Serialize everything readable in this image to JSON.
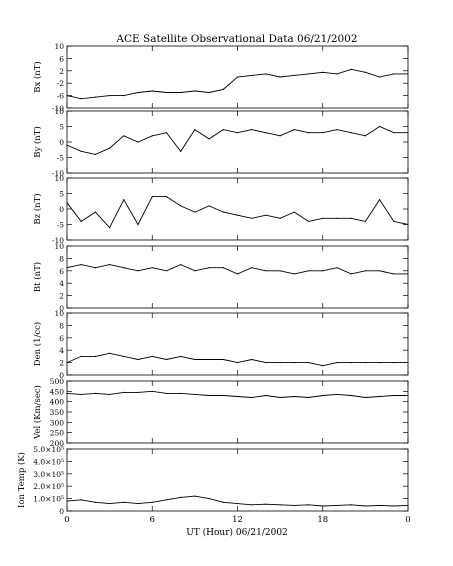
{
  "chart_data": {
    "type": "line",
    "title": "ACE Satellite Observational Data   06/21/2002",
    "xlabel": "UT (Hour)  06/21/2002",
    "x_ticks": [
      "0",
      "6",
      "12",
      "18",
      "0"
    ],
    "xlim": [
      0,
      24
    ],
    "grid": false,
    "panels": [
      {
        "name": "Bx",
        "ylabel": "Bx (nT)",
        "ylim": [
          -10,
          10
        ],
        "y_ticks": [
          "10",
          "6",
          "2",
          "-2",
          "-6",
          "-10"
        ],
        "y_tick_values": [
          10,
          6,
          2,
          -2,
          -6,
          -10
        ],
        "x": [
          0,
          1,
          2,
          3,
          4,
          5,
          6,
          7,
          8,
          9,
          10,
          11,
          12,
          13,
          14,
          15,
          16,
          17,
          18,
          19,
          20,
          21,
          22,
          23,
          24
        ],
        "values": [
          -6,
          -7,
          -6.5,
          -6,
          -6,
          -5,
          -4.5,
          -5,
          -5,
          -4.5,
          -5,
          -4,
          0,
          0.5,
          1,
          0,
          0.5,
          1,
          1.5,
          1,
          2.5,
          1.5,
          0,
          1,
          1
        ]
      },
      {
        "name": "By",
        "ylabel": "By (nT)",
        "ylim": [
          -10,
          10
        ],
        "y_ticks": [
          "10",
          "5",
          "0",
          "-5",
          "-10"
        ],
        "y_tick_values": [
          10,
          5,
          0,
          -5,
          -10
        ],
        "x": [
          0,
          1,
          2,
          3,
          4,
          5,
          6,
          7,
          8,
          9,
          10,
          11,
          12,
          13,
          14,
          15,
          16,
          17,
          18,
          19,
          20,
          21,
          22,
          23,
          24
        ],
        "values": [
          -1,
          -3,
          -4,
          -2,
          2,
          0,
          2,
          3,
          -3,
          4,
          1,
          4,
          3,
          4,
          3,
          2,
          4,
          3,
          3,
          4,
          3,
          2,
          5,
          3,
          3
        ]
      },
      {
        "name": "Bz",
        "ylabel": "Bz (nT)",
        "ylim": [
          -10,
          10
        ],
        "y_ticks": [
          "10",
          "5",
          "0",
          "-5",
          "-10"
        ],
        "y_tick_values": [
          10,
          5,
          0,
          -5,
          -10
        ],
        "x": [
          0,
          1,
          2,
          3,
          4,
          5,
          6,
          7,
          8,
          9,
          10,
          11,
          12,
          13,
          14,
          15,
          16,
          17,
          18,
          19,
          20,
          21,
          22,
          23,
          24
        ],
        "values": [
          2,
          -4,
          -1,
          -6,
          3,
          -5,
          4,
          4,
          1,
          -1,
          1,
          -1,
          -2,
          -3,
          -2,
          -3,
          -1,
          -4,
          -3,
          -3,
          -3,
          -4,
          3,
          -4,
          -5
        ]
      },
      {
        "name": "Bt",
        "ylabel": "Bt (nT)",
        "ylim": [
          0,
          10
        ],
        "y_ticks": [
          "10",
          "8",
          "6",
          "4",
          "2",
          "0"
        ],
        "y_tick_values": [
          10,
          8,
          6,
          4,
          2,
          0
        ],
        "x": [
          0,
          1,
          2,
          3,
          4,
          5,
          6,
          7,
          8,
          9,
          10,
          11,
          12,
          13,
          14,
          15,
          16,
          17,
          18,
          19,
          20,
          21,
          22,
          23,
          24
        ],
        "values": [
          6.5,
          7,
          6.5,
          7,
          6.5,
          6,
          6.5,
          6,
          7,
          6,
          6.5,
          6.5,
          5.5,
          6.5,
          6,
          6,
          5.5,
          6,
          6,
          6.5,
          5.5,
          6,
          6,
          5.5,
          5.5
        ]
      },
      {
        "name": "Den",
        "ylabel": "Den (1/cc)",
        "ylim": [
          0,
          10
        ],
        "y_ticks": [
          "10",
          "8",
          "6",
          "4",
          "2",
          "0"
        ],
        "y_tick_values": [
          10,
          8,
          6,
          4,
          2,
          0
        ],
        "x": [
          0,
          1,
          2,
          3,
          4,
          5,
          6,
          7,
          8,
          9,
          10,
          11,
          12,
          13,
          14,
          15,
          16,
          17,
          18,
          19,
          20,
          21,
          22,
          23,
          24
        ],
        "values": [
          2,
          3,
          3,
          3.5,
          3,
          2.5,
          3,
          2.5,
          3,
          2.5,
          2.5,
          2.5,
          2,
          2.5,
          2,
          2,
          2,
          2,
          1.5,
          2,
          2,
          2,
          2,
          2,
          2
        ]
      },
      {
        "name": "Vel",
        "ylabel": "Vel (Km/sec)",
        "ylim": [
          200,
          500
        ],
        "y_ticks": [
          "500",
          "450",
          "400",
          "350",
          "300",
          "250",
          "200"
        ],
        "y_tick_values": [
          500,
          450,
          400,
          350,
          300,
          250,
          200
        ],
        "x": [
          0,
          1,
          2,
          3,
          4,
          5,
          6,
          7,
          8,
          9,
          10,
          11,
          12,
          13,
          14,
          15,
          16,
          17,
          18,
          19,
          20,
          21,
          22,
          23,
          24
        ],
        "values": [
          440,
          435,
          440,
          435,
          445,
          445,
          450,
          440,
          440,
          435,
          430,
          430,
          425,
          420,
          430,
          420,
          425,
          420,
          430,
          435,
          430,
          420,
          425,
          430,
          430
        ]
      },
      {
        "name": "Ion Temp",
        "ylabel": "Ion Temp (K)",
        "ylim": [
          0,
          500000
        ],
        "y_ticks": [
          "5.0×10⁵",
          "4.0×10⁵",
          "3.0×10⁵",
          "2.0×10⁵",
          "1.0×10⁵",
          "0"
        ],
        "y_tick_values": [
          500000,
          400000,
          300000,
          200000,
          100000,
          0
        ],
        "x": [
          0,
          1,
          2,
          3,
          4,
          5,
          6,
          7,
          8,
          9,
          10,
          11,
          12,
          13,
          14,
          15,
          16,
          17,
          18,
          19,
          20,
          21,
          22,
          23,
          24
        ],
        "values": [
          80000,
          90000,
          70000,
          60000,
          70000,
          60000,
          70000,
          90000,
          110000,
          120000,
          100000,
          70000,
          60000,
          50000,
          55000,
          50000,
          45000,
          50000,
          40000,
          45000,
          50000,
          40000,
          45000,
          40000,
          45000
        ]
      }
    ]
  }
}
